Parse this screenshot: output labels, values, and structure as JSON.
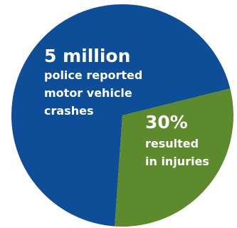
{
  "chart_data": {
    "type": "pie",
    "slices": [
      {
        "value": 70,
        "color": "#0e4e99",
        "headline": "5 million",
        "caption_lines": [
          "police reported",
          "motor vehicle",
          "crashes"
        ]
      },
      {
        "value": 30,
        "color": "#5c8a2d",
        "headline": "30%",
        "caption_lines": [
          "resulted",
          "in injuries"
        ]
      }
    ],
    "start_angle_deg": 14,
    "legend": "none"
  }
}
